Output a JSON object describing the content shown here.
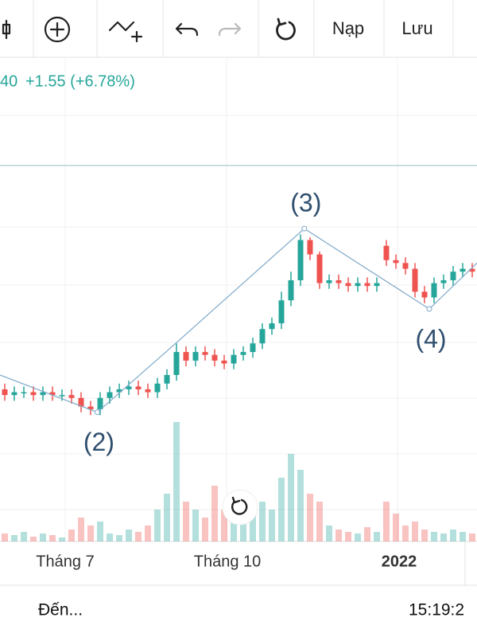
{
  "toolbar": {
    "buttons": [
      "Nạp",
      "Lưu"
    ]
  },
  "quote": {
    "price_fragment": "40",
    "change": "+1.55 (+6.78%)"
  },
  "chart_data": {
    "type": "candlestick",
    "categories": [
      null,
      null,
      null,
      null,
      null,
      null,
      "Tháng 7",
      null,
      null,
      null,
      null,
      null,
      null,
      null,
      null,
      null,
      null,
      null,
      null,
      null,
      null,
      null,
      null,
      "Tháng 10",
      null,
      null,
      null,
      null,
      null,
      null,
      null,
      null,
      null,
      null,
      null,
      null,
      null,
      null,
      null,
      null,
      null,
      "2022",
      null,
      null,
      null,
      null,
      null,
      null,
      null,
      null
    ],
    "open": [
      20.8,
      20.6,
      20.7,
      20.7,
      20.6,
      20.7,
      20.6,
      20.6,
      20.5,
      20.2,
      20.1,
      20.5,
      20.7,
      20.8,
      20.9,
      20.8,
      20.7,
      21.0,
      21.3,
      22.1,
      21.8,
      22.1,
      22.0,
      21.8,
      21.7,
      22.0,
      22.1,
      22.4,
      22.9,
      23.1,
      23.9,
      24.6,
      26.0,
      25.5,
      24.5,
      24.6,
      24.5,
      24.4,
      24.5,
      24.4,
      25.8,
      25.3,
      25.2,
      25.0,
      24.2,
      24.0,
      24.5,
      24.6,
      24.9,
      25.0
    ],
    "high": [
      21.0,
      20.9,
      20.9,
      20.9,
      20.9,
      20.9,
      20.8,
      20.8,
      20.7,
      20.4,
      20.7,
      20.9,
      21.0,
      21.1,
      21.1,
      21.0,
      21.2,
      21.5,
      22.4,
      22.3,
      22.3,
      22.3,
      22.2,
      22.0,
      22.2,
      22.3,
      22.6,
      23.1,
      23.3,
      24.2,
      24.9,
      26.2,
      26.1,
      25.6,
      24.8,
      24.8,
      24.7,
      24.7,
      24.7,
      24.7,
      26.0,
      25.5,
      25.4,
      25.2,
      24.4,
      24.7,
      24.8,
      25.1,
      25.2,
      25.2
    ],
    "low": [
      20.4,
      20.4,
      20.5,
      20.4,
      20.4,
      20.4,
      20.4,
      20.3,
      20.0,
      19.9,
      19.9,
      20.3,
      20.5,
      20.6,
      20.6,
      20.5,
      20.5,
      20.8,
      21.1,
      21.6,
      21.6,
      21.8,
      21.6,
      21.5,
      21.5,
      21.8,
      21.9,
      22.2,
      22.7,
      22.9,
      23.7,
      24.4,
      25.3,
      24.3,
      24.3,
      24.3,
      24.2,
      24.2,
      24.2,
      24.2,
      25.1,
      25.0,
      24.8,
      24.0,
      23.8,
      23.8,
      24.3,
      24.4,
      24.7,
      24.7
    ],
    "close": [
      20.6,
      20.7,
      20.7,
      20.6,
      20.7,
      20.6,
      20.6,
      20.5,
      20.2,
      20.1,
      20.5,
      20.7,
      20.8,
      20.9,
      20.8,
      20.7,
      21.0,
      21.3,
      22.1,
      21.8,
      22.1,
      22.0,
      21.8,
      21.7,
      22.0,
      22.1,
      22.4,
      22.9,
      23.1,
      23.9,
      24.6,
      26.0,
      25.5,
      24.5,
      24.6,
      24.5,
      24.4,
      24.5,
      24.4,
      24.5,
      25.3,
      25.2,
      25.0,
      24.2,
      24.0,
      24.5,
      24.6,
      24.9,
      25.0,
      24.9
    ],
    "volume": [
      10,
      8,
      12,
      6,
      10,
      8,
      5,
      15,
      30,
      20,
      25,
      10,
      8,
      15,
      12,
      20,
      40,
      60,
      150,
      50,
      40,
      30,
      70,
      40,
      30,
      60,
      45,
      50,
      40,
      80,
      110,
      90,
      60,
      50,
      20,
      15,
      12,
      10,
      18,
      12,
      50,
      35,
      20,
      25,
      15,
      12,
      10,
      15,
      12,
      10
    ],
    "ylim": [
      15.5,
      32.2
    ],
    "volume_lim": [
      0,
      200
    ],
    "price_line": 28.6,
    "up_color": "#26a69a",
    "down_color": "#ef5350",
    "waves": [
      {
        "label": null,
        "x": -0.5,
        "y": 21.3
      },
      {
        "label": "(2)",
        "x": 9.7,
        "y": 20.0
      },
      {
        "label": null,
        "x": 18.25,
        "y": 22.5
      },
      {
        "label": "(3)",
        "x": 31.4,
        "y": 26.4
      },
      {
        "label": "(4)",
        "x": 44.5,
        "y": 23.6
      },
      {
        "label": null,
        "x": 49.5,
        "y": 25.2
      }
    ]
  },
  "footer": {
    "goto": "Đến...",
    "time": "15:19:2"
  }
}
